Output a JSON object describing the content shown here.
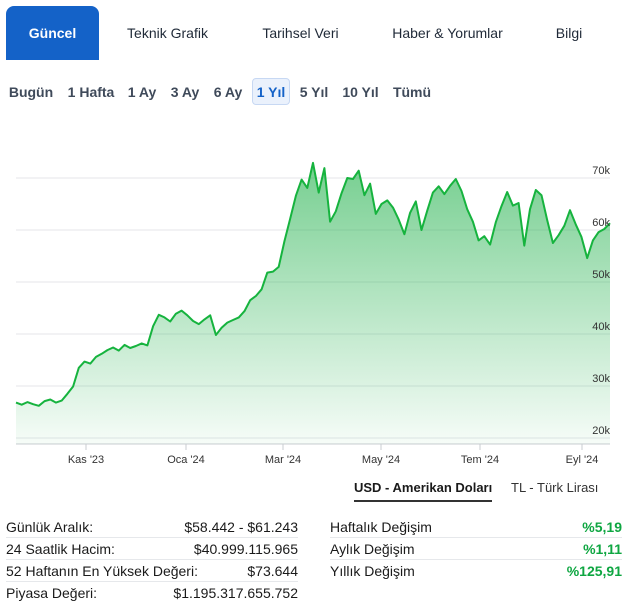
{
  "tabs": [
    {
      "label": "Güncel",
      "active": true
    },
    {
      "label": "Teknik Grafik",
      "active": false
    },
    {
      "label": "Tarihsel Veri",
      "active": false
    },
    {
      "label": "Haber & Yorumlar",
      "active": false
    },
    {
      "label": "Bilgi",
      "active": false
    }
  ],
  "ranges": [
    {
      "label": "Bugün",
      "active": false
    },
    {
      "label": "1 Hafta",
      "active": false
    },
    {
      "label": "1 Ay",
      "active": false
    },
    {
      "label": "3 Ay",
      "active": false
    },
    {
      "label": "6 Ay",
      "active": false
    },
    {
      "label": "1 Yıl",
      "active": true
    },
    {
      "label": "5 Yıl",
      "active": false
    },
    {
      "label": "10 Yıl",
      "active": false
    },
    {
      "label": "Tümü",
      "active": false
    }
  ],
  "colors": {
    "accent": "#1462c8",
    "line": "#16b33e",
    "positive": "#0ea641"
  },
  "chart_data": {
    "type": "area",
    "ylim": [
      20000,
      75000
    ],
    "yticks": [
      {
        "value": 70000,
        "label": "70k"
      },
      {
        "value": 60000,
        "label": "60k"
      },
      {
        "value": 50000,
        "label": "50k"
      },
      {
        "value": 40000,
        "label": "40k"
      },
      {
        "value": 30000,
        "label": "30k"
      },
      {
        "value": 20000,
        "label": "20k"
      }
    ],
    "xticks": [
      "Kas '23",
      "Oca '24",
      "Mar '24",
      "May '24",
      "Tem '24",
      "Eyl '24"
    ],
    "grid": true,
    "series": [
      {
        "values": [
          26800,
          26400,
          26900,
          26500,
          26200,
          27100,
          27400,
          26800,
          27200,
          28500,
          29900,
          33500,
          34700,
          34300,
          35600,
          36200,
          36900,
          37400,
          36800,
          37900,
          37300,
          37700,
          38200,
          37800,
          41500,
          43700,
          43200,
          42400,
          43900,
          44500,
          43600,
          42500,
          41900,
          42800,
          43600,
          39800,
          41200,
          42200,
          42700,
          43200,
          44400,
          46500,
          47300,
          48600,
          51800,
          52000,
          52900,
          57800,
          62200,
          66600,
          69700,
          68100,
          72900,
          67200,
          71900,
          61600,
          63600,
          67100,
          70000,
          69800,
          71400,
          66700,
          68900,
          63100,
          65000,
          65700,
          64300,
          62000,
          59200,
          63300,
          65500,
          60000,
          63700,
          67200,
          68400,
          66900,
          68500,
          69800,
          67500,
          64000,
          61600,
          58000,
          58800,
          57200,
          61500,
          64600,
          67300,
          64700,
          65200,
          57000,
          64000,
          67700,
          66700,
          61900,
          57500,
          59000,
          60800,
          63800,
          61100,
          58700,
          54600,
          58000,
          59600,
          60200,
          61300
        ]
      }
    ]
  },
  "currency": {
    "usd": "USD - Amerikan Doları",
    "tl": "TL - Türk Lirası"
  },
  "stats_left": [
    {
      "label": "Günlük Aralık:",
      "value": "$58.442 - $61.243"
    },
    {
      "label": "24 Saatlik Hacim:",
      "value": "$40.999.115.965"
    },
    {
      "label": "52 Haftanın En Yüksek Değeri:",
      "value": "$73.644"
    },
    {
      "label": "Piyasa Değeri:",
      "value": "$1.195.317.655.752"
    }
  ],
  "stats_right": [
    {
      "label": "Haftalık Değişim",
      "value": "%5,19"
    },
    {
      "label": "Aylık Değişim",
      "value": "%1,11"
    },
    {
      "label": "Yıllık Değişim",
      "value": "%125,91"
    }
  ]
}
